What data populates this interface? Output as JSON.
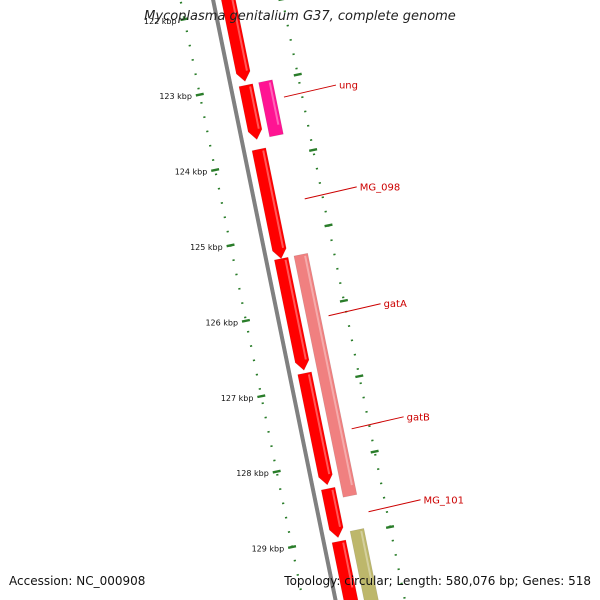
{
  "title": "Mycoplasma genitalium G37, complete genome",
  "footer": {
    "accession": "Accession: NC_000908",
    "summary": "Topology: circular; Length: 580,076 bp; Genes: 518"
  },
  "ruler": {
    "ticks": [
      {
        "label": "122 kbp",
        "kbp": 122
      },
      {
        "label": "123 kbp",
        "kbp": 123
      },
      {
        "label": "124 kbp",
        "kbp": 124
      },
      {
        "label": "125 kbp",
        "kbp": 125
      },
      {
        "label": "126 kbp",
        "kbp": 126
      },
      {
        "label": "127 kbp",
        "kbp": 127
      },
      {
        "label": "128 kbp",
        "kbp": 128
      },
      {
        "label": "129 kbp",
        "kbp": 129
      }
    ]
  },
  "colors": {
    "gene_red": "#ff0000",
    "gene_magenta": "#ff1493",
    "gene_salmon": "#f08080",
    "gene_olive": "#bdb76b",
    "backbone": "#808080",
    "ruler": "#2a7d2a",
    "label": "#cc0000"
  },
  "features": [
    {
      "name": "",
      "track": "inner",
      "start_kbp": 121.8,
      "end_kbp": 122.95,
      "color": "gene_red"
    },
    {
      "name": "",
      "track": "inner",
      "start_kbp": 123.0,
      "end_kbp": 123.72,
      "color": "gene_red"
    },
    {
      "name": "ung",
      "track": "outer",
      "start_kbp": 123.0,
      "end_kbp": 123.72,
      "color": "gene_magenta"
    },
    {
      "name": "MG_098",
      "track": "inner",
      "start_kbp": 123.85,
      "end_kbp": 125.3,
      "color": "gene_red"
    },
    {
      "name": "gatA",
      "track": "outer",
      "start_kbp": 125.3,
      "end_kbp": 128.5,
      "color": "gene_salmon"
    },
    {
      "name": "",
      "track": "inner",
      "start_kbp": 125.3,
      "end_kbp": 126.78,
      "color": "gene_red"
    },
    {
      "name": "gatB",
      "track": "inner",
      "start_kbp": 126.82,
      "end_kbp": 128.3,
      "color": "gene_red"
    },
    {
      "name": "MG_101",
      "track": "inner",
      "start_kbp": 128.35,
      "end_kbp": 129.0,
      "color": "gene_red"
    },
    {
      "name": "",
      "track": "inner",
      "start_kbp": 129.05,
      "end_kbp": 130.0,
      "color": "gene_red"
    },
    {
      "name": "",
      "track": "outer",
      "start_kbp": 128.95,
      "end_kbp": 130.0,
      "color": "gene_olive"
    }
  ],
  "labels": [
    {
      "text": "ung",
      "kbp": 123.25
    },
    {
      "text": "MG_098",
      "kbp": 124.6
    },
    {
      "text": "gatA",
      "kbp": 126.15
    },
    {
      "text": "gatB",
      "kbp": 127.65
    },
    {
      "text": "MG_101",
      "kbp": 128.75
    }
  ]
}
